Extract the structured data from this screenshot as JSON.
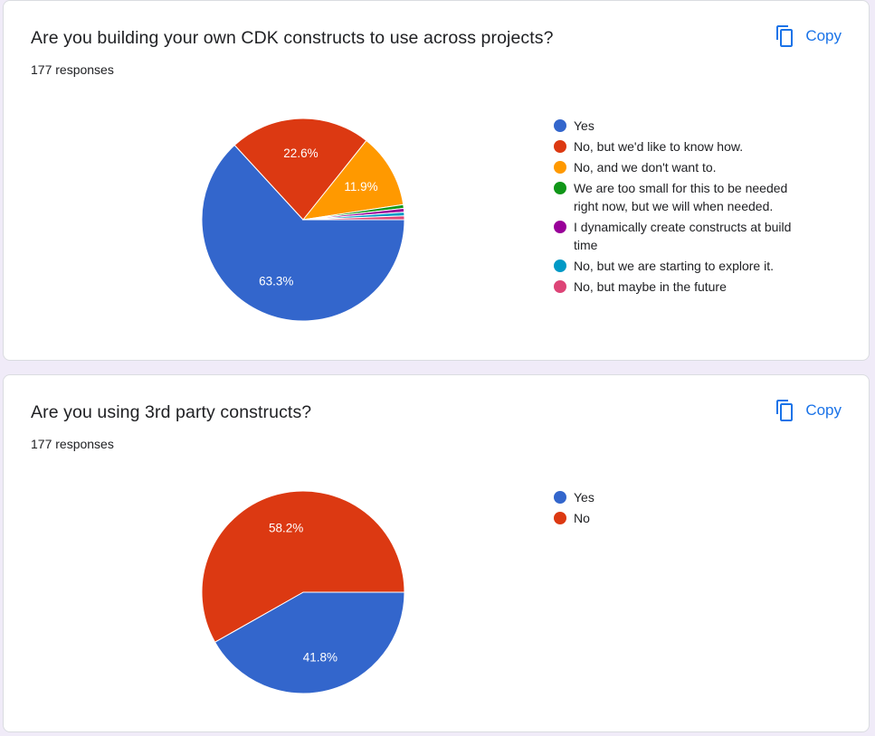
{
  "cards": [
    {
      "title": "Are you building your own CDK constructs to use across projects?",
      "responses": "177 responses",
      "copy_label": "Copy"
    },
    {
      "title": "Are you using 3rd party constructs?",
      "responses": "177 responses",
      "copy_label": "Copy"
    }
  ],
  "chart_data": [
    {
      "type": "pie",
      "title": "Are you building your own CDK constructs to use across projects?",
      "total_responses": 177,
      "legend_position": "right",
      "slices": [
        {
          "label": "Yes",
          "value": 63.3,
          "color": "#3366cc",
          "data_label": "63.3%"
        },
        {
          "label": "No, but we'd like to know how.",
          "value": 22.6,
          "color": "#dc3912",
          "data_label": "22.6%"
        },
        {
          "label": "No, and we don't want to.",
          "value": 11.9,
          "color": "#ff9900",
          "data_label": "11.9%"
        },
        {
          "label": "We are too small for this to be needed right now, but we will when needed.",
          "value": 0.6,
          "color": "#109618",
          "data_label": ""
        },
        {
          "label": "I dynamically create constructs at build time",
          "value": 0.6,
          "color": "#990099",
          "data_label": ""
        },
        {
          "label": "No, but we are starting to explore it.",
          "value": 0.6,
          "color": "#0099c6",
          "data_label": ""
        },
        {
          "label": "No, but maybe in the future",
          "value": 0.6,
          "color": "#dd4477",
          "data_label": ""
        }
      ]
    },
    {
      "type": "pie",
      "title": "Are you using 3rd party constructs?",
      "total_responses": 177,
      "legend_position": "right",
      "slices": [
        {
          "label": "Yes",
          "value": 41.8,
          "color": "#3366cc",
          "data_label": "41.8%"
        },
        {
          "label": "No",
          "value": 58.2,
          "color": "#dc3912",
          "data_label": "58.2%"
        }
      ]
    }
  ]
}
